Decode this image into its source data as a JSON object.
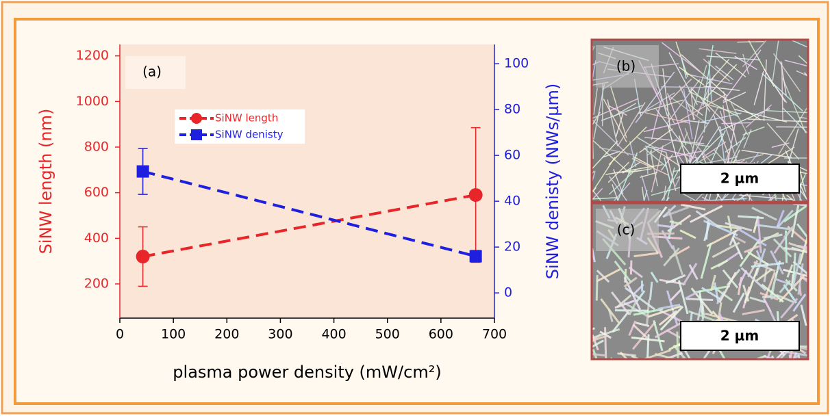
{
  "chart_data": {
    "type": "line",
    "annotation": "(a)",
    "xlabel": "plasma power density (mW/cm²)",
    "ylabel": "SiNW length (nm)",
    "y2label": "SiNW denisty (NWs/µm)",
    "x": [
      43,
      665
    ],
    "series": [
      {
        "name": "SiNW length",
        "color": "#e8262a",
        "marker": "circle",
        "values": [
          320,
          590
        ],
        "errors": [
          130,
          295
        ]
      },
      {
        "name": "SiNW denisty",
        "color": "#1f1fe0",
        "marker": "square",
        "axis": "y2",
        "values": [
          53,
          16
        ],
        "errors": [
          10,
          2.5
        ]
      }
    ],
    "xlim": [
      0,
      700
    ],
    "xticks": [
      0,
      100,
      200,
      300,
      400,
      500,
      600,
      700
    ],
    "ylim": [
      50,
      1250
    ],
    "yticks": [
      200,
      400,
      600,
      800,
      1000,
      1200
    ],
    "y2lim": [
      -11,
      108.4
    ],
    "y2ticks": [
      0,
      20,
      40,
      60,
      80,
      100
    ],
    "plot_color": "#fbe5d6"
  },
  "panels": [
    {
      "label": "(b)",
      "scale": "2 µm"
    },
    {
      "label": "(c)",
      "scale": "2 µm"
    }
  ]
}
